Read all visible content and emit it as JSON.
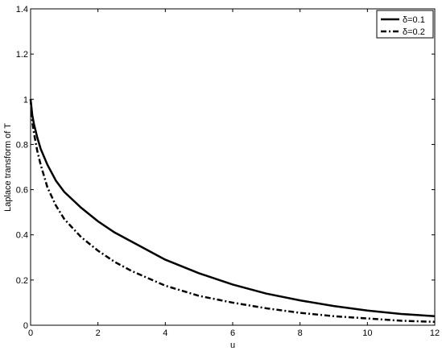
{
  "chart_data": {
    "type": "line",
    "xlabel": "u",
    "ylabel": "Laplace transform of T",
    "xlim": [
      0,
      12
    ],
    "ylim": [
      0,
      1.4
    ],
    "xticks": [
      "0",
      "2",
      "4",
      "6",
      "8",
      "10",
      "12"
    ],
    "yticks": [
      "0",
      "0.2",
      "0.4",
      "0.6",
      "0.8",
      "1",
      "1.2",
      "1.4"
    ],
    "grid": false,
    "legend_position": "top-right",
    "series": [
      {
        "name": "δ=0.1",
        "style": "solid",
        "color": "#000000",
        "x": [
          0,
          0.05,
          0.1,
          0.2,
          0.3,
          0.5,
          0.75,
          1,
          1.5,
          2,
          2.5,
          3,
          4,
          5,
          6,
          7,
          8,
          9,
          10,
          11,
          12
        ],
        "y": [
          1.0,
          0.93,
          0.89,
          0.83,
          0.78,
          0.71,
          0.64,
          0.59,
          0.52,
          0.46,
          0.41,
          0.37,
          0.29,
          0.23,
          0.18,
          0.14,
          0.11,
          0.085,
          0.065,
          0.05,
          0.04
        ]
      },
      {
        "name": "δ=0.2",
        "style": "dashdot",
        "color": "#000000",
        "x": [
          0,
          0.05,
          0.1,
          0.2,
          0.3,
          0.5,
          0.75,
          1,
          1.5,
          2,
          2.5,
          3,
          4,
          5,
          6,
          7,
          8,
          9,
          10,
          11,
          12
        ],
        "y": [
          1.0,
          0.9,
          0.85,
          0.77,
          0.71,
          0.61,
          0.53,
          0.47,
          0.39,
          0.33,
          0.28,
          0.24,
          0.175,
          0.13,
          0.1,
          0.075,
          0.055,
          0.04,
          0.03,
          0.02,
          0.015
        ]
      }
    ]
  }
}
